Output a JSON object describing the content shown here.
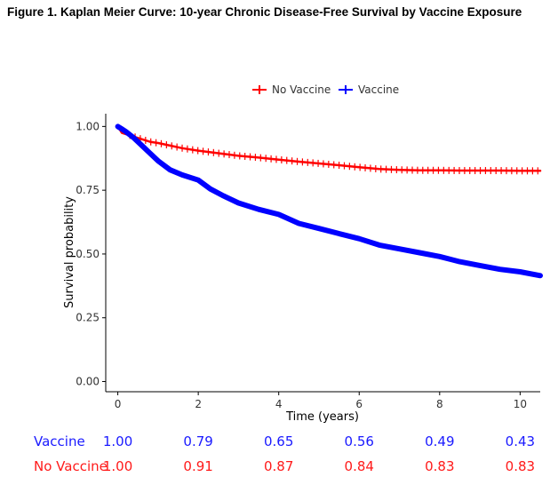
{
  "figure_title": "Figure 1. Kaplan Meier Curve: 10-year Chronic Disease-Free Survival by Vaccine Exposure",
  "colors": {
    "no_vaccine": "#ff0000",
    "vaccine": "#0000ff",
    "risk_vaccine": "#1a1aff",
    "risk_no_vaccine": "#ff1a1a"
  },
  "chart_data": {
    "type": "line",
    "title": "",
    "xlabel": "Time (years)",
    "ylabel": "Survival probability",
    "xlim": [
      -0.3,
      10.5
    ],
    "ylim": [
      -0.04,
      1.05
    ],
    "x_ticks": [
      0,
      2,
      4,
      6,
      8,
      10
    ],
    "x_tick_labels": [
      "0",
      "2",
      "4",
      "6",
      "8",
      "10"
    ],
    "y_ticks": [
      0,
      0.25,
      0.5,
      0.75,
      1
    ],
    "y_tick_labels": [
      "0.00",
      "0.25",
      "0.50",
      "0.75",
      "1.00"
    ],
    "grid": false,
    "legend_position": "top",
    "series": [
      {
        "name": "No Vaccine",
        "color": "#ff0000",
        "censor_marks": true,
        "x": [
          0,
          0.1,
          0.3,
          0.5,
          0.8,
          1.0,
          1.3,
          1.6,
          2.0,
          2.5,
          3.0,
          3.5,
          4.0,
          4.5,
          5.0,
          5.5,
          6.0,
          6.5,
          7.0,
          7.5,
          8.0,
          8.5,
          9.0,
          9.5,
          10.0,
          10.5
        ],
        "y": [
          1.0,
          0.975,
          0.965,
          0.955,
          0.94,
          0.935,
          0.925,
          0.915,
          0.905,
          0.895,
          0.885,
          0.878,
          0.87,
          0.862,
          0.855,
          0.848,
          0.84,
          0.833,
          0.83,
          0.828,
          0.828,
          0.827,
          0.827,
          0.827,
          0.826,
          0.826
        ]
      },
      {
        "name": "Vaccine",
        "color": "#0000ff",
        "censor_marks": false,
        "x": [
          0,
          0.1,
          0.2,
          0.4,
          0.6,
          0.8,
          1.0,
          1.3,
          1.6,
          2.0,
          2.3,
          2.6,
          3.0,
          3.5,
          4.0,
          4.5,
          5.0,
          5.5,
          6.0,
          6.5,
          7.0,
          7.5,
          8.0,
          8.5,
          9.0,
          9.5,
          10.0,
          10.5
        ],
        "y": [
          1.0,
          0.99,
          0.98,
          0.955,
          0.925,
          0.895,
          0.865,
          0.83,
          0.81,
          0.79,
          0.755,
          0.73,
          0.7,
          0.675,
          0.655,
          0.62,
          0.6,
          0.58,
          0.56,
          0.535,
          0.52,
          0.505,
          0.49,
          0.47,
          0.455,
          0.44,
          0.43,
          0.415
        ]
      }
    ],
    "risk_table": {
      "times": [
        0,
        2,
        4,
        6,
        8,
        10
      ],
      "rows": [
        {
          "name": "Vaccine",
          "values": [
            "1.00",
            "0.79",
            "0.65",
            "0.56",
            "0.49",
            "0.43"
          ]
        },
        {
          "name": "No Vaccine",
          "values": [
            "1.00",
            "0.91",
            "0.87",
            "0.84",
            "0.83",
            "0.83"
          ]
        }
      ]
    }
  }
}
